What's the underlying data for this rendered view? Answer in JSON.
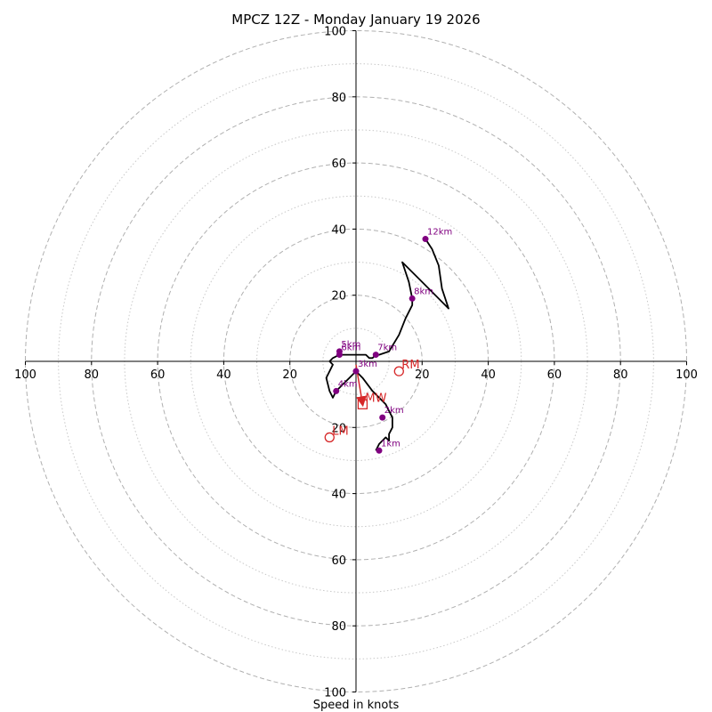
{
  "chart_data": {
    "type": "scatter",
    "subtype": "hodograph",
    "title": "MPCZ 12Z - Monday January 19 2026",
    "xlabel": "Speed in knots",
    "xlim": [
      -100,
      100
    ],
    "ylim": [
      -100,
      100
    ],
    "ring_values": [
      10,
      20,
      30,
      40,
      50,
      60,
      70,
      80,
      90,
      100
    ],
    "x_tick_labels": [
      "100",
      "80",
      "60",
      "40",
      "20",
      "20",
      "40",
      "60",
      "80",
      "100"
    ],
    "x_tick_values": [
      -100,
      -80,
      -60,
      -40,
      -20,
      20,
      40,
      60,
      80,
      100
    ],
    "y_tick_labels": [
      "100",
      "80",
      "60",
      "40",
      "20",
      "20",
      "40",
      "60",
      "80",
      "100"
    ],
    "y_tick_values": [
      100,
      80,
      60,
      40,
      20,
      -20,
      -40,
      -60,
      -80,
      -100
    ],
    "colors": {
      "profile": "#000000",
      "height_marker": "#800080",
      "storm_motion": "#d62728",
      "major_ring": "#b0b0b0",
      "minor_ring": "#c8c8c8"
    },
    "wind_profile": [
      [
        6,
        -27
      ],
      [
        7,
        -25
      ],
      [
        9,
        -23
      ],
      [
        10,
        -24
      ],
      [
        10,
        -22
      ],
      [
        11,
        -20
      ],
      [
        11,
        -20
      ],
      [
        11,
        -18
      ],
      [
        11,
        -17
      ],
      [
        10,
        -15
      ],
      [
        9,
        -13
      ],
      [
        5,
        -9
      ],
      [
        2,
        -5
      ],
      [
        0,
        -3
      ],
      [
        -2,
        -5
      ],
      [
        -4,
        -7
      ],
      [
        -6,
        -9
      ],
      [
        -7,
        -11
      ],
      [
        -8,
        -9
      ],
      [
        -9,
        -5
      ],
      [
        -7,
        -1
      ],
      [
        -8,
        0
      ],
      [
        -7,
        1
      ],
      [
        -5,
        2
      ],
      [
        -4,
        2
      ],
      [
        -1,
        2
      ],
      [
        0,
        2
      ],
      [
        3,
        2
      ],
      [
        4,
        1
      ],
      [
        5,
        1
      ],
      [
        6,
        2
      ],
      [
        7,
        2
      ],
      [
        10,
        3
      ],
      [
        13,
        8
      ],
      [
        15,
        13
      ],
      [
        17,
        17
      ],
      [
        17,
        19
      ],
      [
        16,
        24
      ],
      [
        14,
        30
      ],
      [
        19,
        25
      ],
      [
        24,
        20
      ],
      [
        28,
        16
      ],
      [
        26,
        22
      ],
      [
        25,
        29
      ],
      [
        23,
        34
      ],
      [
        21,
        37
      ]
    ],
    "height_markers": [
      {
        "label": "1km",
        "u": 7,
        "v": -27
      },
      {
        "label": "2km",
        "u": 8,
        "v": -17
      },
      {
        "label": "3km",
        "u": 0,
        "v": -3
      },
      {
        "label": "4km",
        "u": -6,
        "v": -9
      },
      {
        "label": "5km",
        "u": -5,
        "v": 3
      },
      {
        "label": "6km",
        "u": -5,
        "v": 2
      },
      {
        "label": "7km",
        "u": 6,
        "v": 2
      },
      {
        "label": "8km",
        "u": 17,
        "v": 19
      },
      {
        "label": "12km",
        "u": 21,
        "v": 37
      }
    ],
    "storm_motion": [
      {
        "label": "RM",
        "u": 13,
        "v": -3,
        "marker": "circle"
      },
      {
        "label": "LM",
        "u": -8,
        "v": -23,
        "marker": "circle"
      },
      {
        "label": "MW",
        "u": 2,
        "v": -13,
        "marker": "square"
      }
    ],
    "shear_vector": {
      "from_u": 0,
      "from_v": -1,
      "to_u": 2,
      "to_v": -13
    }
  }
}
